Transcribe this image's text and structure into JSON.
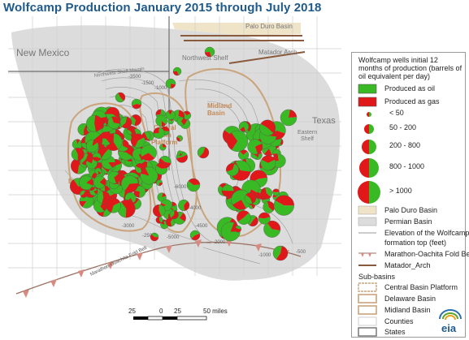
{
  "title": "Wolfcamp Production January 2015 through July 2018",
  "colors": {
    "title": "#1f5a8a",
    "oil": "#39b924",
    "gas": "#e0181a",
    "permian_basin": "#dcdcdc",
    "palo_duro": "#efe3c8",
    "subbasin_outline": "#c9a47c",
    "arch": "#8a5a3c",
    "county_lines": "#c8c8c8",
    "state_lines": "#6e6e6e"
  },
  "map_labels": {
    "new_mexico": "New Mexico",
    "texas": "Texas",
    "palo_duro_basin": "Palo Duro Basin",
    "matador_arch": "Matador Arch",
    "northwest_shelf": "Northwest Shelf",
    "northwest_shelf_margin": "Northwest Shelf Margin",
    "midland_basin": "Midland Basin",
    "central_basin_platform": "Central Basin Platform",
    "delaware_basin": "Delaware Basin",
    "eastern_shelf": "Eastern Shelf",
    "marathon_fold_belt": "Marathon-Ouachita Fold Belt"
  },
  "contour_labels": [
    "-3500",
    "-1500",
    "-1000",
    "-4000",
    "-6000",
    "-4500",
    "-5000",
    "-2500",
    "-3000",
    "-2000",
    "-1000",
    "-500"
  ],
  "scale_bar": {
    "ticks": [
      "25",
      "0",
      "25",
      "50 miles"
    ]
  },
  "legend": {
    "title": "Wolfcamp wells initial 12 months of production (barrels of oil equivalent per day)",
    "produced_as_oil": "Produced as oil",
    "produced_as_gas": "Produced as gas",
    "size_classes": [
      "< 50",
      "50 - 200",
      "200 - 800",
      "800 - 1000",
      "> 1000"
    ],
    "palo_duro_basin": "Palo Duro Basin",
    "permian_basin": "Permian Basin",
    "contour_elevation": "Elevation of the Wolfcamp",
    "contour_elevation_2": "formation top (feet)",
    "marathon_fold_belt": "Marathon-Oachita Fold Belt",
    "matador_arch": "Matador_Arch",
    "subbasins_heading": "Sub-basins",
    "central_basin_platform": "Central Basin Platform",
    "delaware_basin": "Delaware Basin",
    "midland_basin": "Midland Basin",
    "counties": "Counties",
    "states": "States"
  },
  "logo": "eia"
}
